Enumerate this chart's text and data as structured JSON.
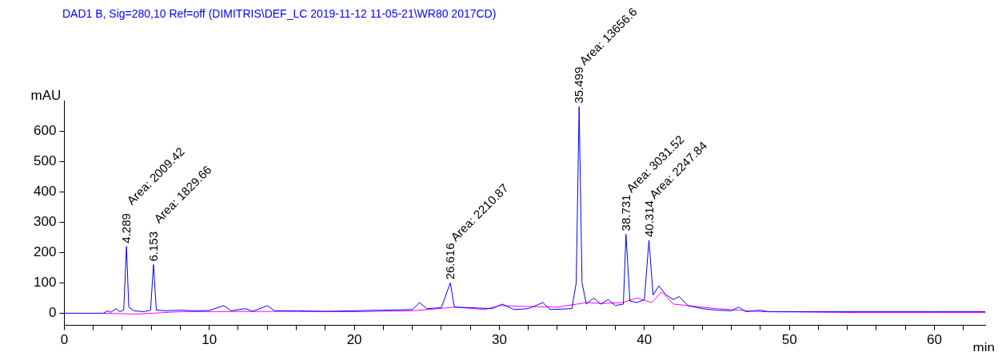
{
  "chart_data": {
    "type": "line",
    "title": "DAD1 B, Sig=280,10 Ref=off (DIMITRIS\\DEF_LC 2019-11-12 11-05-21\\WR80 2017CD)",
    "xlabel": "min",
    "ylabel": "mAU",
    "xlim": [
      0,
      63.5
    ],
    "ylim": [
      -40,
      700
    ],
    "xticks": [
      0,
      {
        "value": 2,
        "label": null
      },
      {
        "value": 4,
        "label": null
      },
      {
        "value": 6,
        "label": null
      },
      {
        "value": 8,
        "label": null
      },
      10,
      {
        "value": 12,
        "label": null
      },
      {
        "value": 14,
        "label": null
      },
      {
        "value": 16,
        "label": null
      },
      {
        "value": 18,
        "label": null
      },
      20,
      {
        "value": 22,
        "label": null
      },
      {
        "value": 24,
        "label": null
      },
      {
        "value": 26,
        "label": null
      },
      {
        "value": 28,
        "label": null
      },
      30,
      {
        "value": 32,
        "label": null
      },
      {
        "value": 34,
        "label": null
      },
      {
        "value": 36,
        "label": null
      },
      {
        "value": 38,
        "label": null
      },
      40,
      {
        "value": 42,
        "label": null
      },
      {
        "value": 44,
        "label": null
      },
      {
        "value": 46,
        "label": null
      },
      {
        "value": 48,
        "label": null
      },
      50,
      {
        "value": 52,
        "label": null
      },
      {
        "value": 54,
        "label": null
      },
      {
        "value": 56,
        "label": null
      },
      {
        "value": 58,
        "label": null
      },
      60,
      {
        "value": 62,
        "label": null
      }
    ],
    "yticks": [
      0,
      100,
      200,
      300,
      400,
      500,
      600
    ],
    "grid": false,
    "legend": false,
    "marker": "none",
    "line_style": "solid",
    "series": [
      {
        "color": "#0000ff",
        "x": [
          0,
          2.7,
          3.0,
          3.2,
          3.6,
          3.8,
          4.1,
          4.289,
          4.45,
          4.8,
          5.5,
          5.95,
          6.153,
          6.35,
          7,
          8,
          9,
          10,
          11,
          11.5,
          12.5,
          13,
          14,
          14.5,
          16,
          18,
          20,
          22,
          24,
          24.5,
          25,
          26,
          26.616,
          26.9,
          28,
          29.5,
          30.2,
          31,
          32,
          33,
          33.5,
          35,
          35.3,
          35.499,
          35.7,
          36,
          36.5,
          37,
          37.5,
          38,
          38.55,
          38.731,
          39,
          39.5,
          40,
          40.314,
          40.6,
          41,
          41.5,
          42,
          42.4,
          43,
          44,
          45,
          46,
          46.5,
          47,
          48,
          48.5,
          50,
          55,
          60,
          63.5
        ],
        "values": [
          0,
          0,
          8,
          3,
          15,
          5,
          10,
          220,
          20,
          8,
          5,
          10,
          160,
          10,
          8,
          10,
          8,
          9,
          25,
          8,
          15,
          6,
          25,
          8,
          8,
          6,
          8,
          10,
          12,
          35,
          15,
          18,
          100,
          20,
          18,
          15,
          30,
          12,
          15,
          35,
          12,
          15,
          100,
          680,
          100,
          30,
          50,
          30,
          45,
          25,
          30,
          260,
          40,
          35,
          45,
          240,
          60,
          90,
          60,
          45,
          55,
          25,
          15,
          10,
          8,
          20,
          5,
          10,
          5,
          5,
          5,
          5,
          5
        ]
      },
      {
        "color": "#ff00ff",
        "x": [
          2.7,
          5,
          8,
          15,
          20,
          24,
          27,
          29,
          30,
          32,
          34,
          36,
          37,
          38.5,
          39.5,
          40.5,
          41.2,
          42,
          45,
          48,
          55,
          63.5
        ],
        "values": [
          0,
          -3,
          5,
          6,
          5,
          8,
          20,
          12,
          25,
          22,
          20,
          35,
          32,
          35,
          50,
          35,
          70,
          30,
          15,
          5,
          2,
          2
        ]
      }
    ],
    "annotations": [
      {
        "text": "4.289",
        "x": 4.289,
        "y": 220
      },
      "Area: 2009.42",
      {
        "text": "6.153",
        "x": 6.153,
        "y": 160
      },
      "Area: 1829.66",
      {
        "text": "26.616",
        "x": 26.616,
        "y": 100
      },
      "Area: 2210.87",
      {
        "text": "35.499",
        "x": 35.499,
        "y": 680
      },
      "Area: 13656.6",
      {
        "text": "38.731",
        "x": 38.731,
        "y": 260
      },
      "Area: 3031.52",
      {
        "text": "40.314",
        "x": 40.314,
        "y": 240
      },
      "Area: 2247.84"
    ]
  }
}
